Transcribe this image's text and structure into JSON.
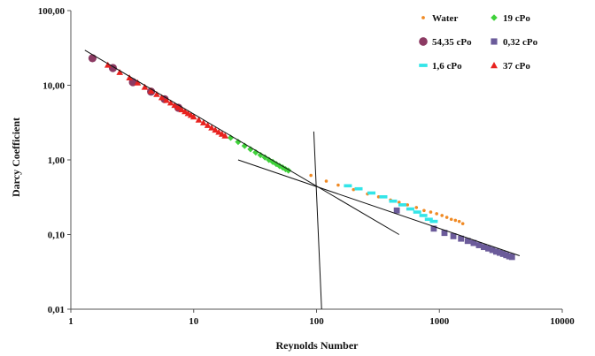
{
  "chart_data": {
    "type": "scatter",
    "title": "",
    "xlabel": "Reynolds Number",
    "ylabel": "Darcy Coefficient",
    "x_scale": "log",
    "y_scale": "log",
    "xlim": [
      1,
      10000
    ],
    "ylim": [
      0.01,
      100
    ],
    "x_ticks": [
      {
        "value": 1,
        "label": "1"
      },
      {
        "value": 10,
        "label": "10"
      },
      {
        "value": 100,
        "label": "100"
      },
      {
        "value": 1000,
        "label": "1000"
      },
      {
        "value": 10000,
        "label": "10000"
      }
    ],
    "y_ticks": [
      {
        "value": 0.01,
        "label": "0,01"
      },
      {
        "value": 0.1,
        "label": "0,10"
      },
      {
        "value": 1,
        "label": "1,00"
      },
      {
        "value": 10,
        "label": "10,00"
      },
      {
        "value": 100,
        "label": "100,00"
      }
    ],
    "grid": false,
    "legend_position": "top-right",
    "series": [
      {
        "name": "Water",
        "marker": "dot",
        "color": "#f08a24",
        "x": [
          90,
          120,
          150,
          200,
          260,
          320,
          400,
          470,
          550,
          650,
          750,
          850,
          950,
          1050,
          1150,
          1250,
          1350,
          1450,
          1550
        ],
        "y": [
          0.62,
          0.52,
          0.46,
          0.4,
          0.35,
          0.32,
          0.29,
          0.27,
          0.25,
          0.23,
          0.21,
          0.2,
          0.19,
          0.18,
          0.17,
          0.16,
          0.155,
          0.15,
          0.14
        ]
      },
      {
        "name": "19 cPo",
        "marker": "diamond",
        "color": "#3fd13a",
        "x": [
          20,
          23,
          26,
          29,
          32,
          35,
          38,
          41,
          44,
          47,
          50,
          53,
          56,
          59
        ],
        "y": [
          1.98,
          1.74,
          1.54,
          1.39,
          1.26,
          1.16,
          1.08,
          1.0,
          0.94,
          0.88,
          0.83,
          0.79,
          0.75,
          0.72
        ]
      },
      {
        "name": "54,35 cPo",
        "marker": "circle",
        "color": "#8c3a63",
        "x": [
          1.5,
          2.2,
          3.2,
          4.5,
          5.8,
          7.5
        ],
        "y": [
          23.0,
          17.0,
          11.0,
          8.2,
          6.5,
          5.0
        ]
      },
      {
        "name": "0,32 cPo",
        "marker": "square",
        "color": "#6b5b9a",
        "x": [
          450,
          900,
          1100,
          1300,
          1500,
          1700,
          1900,
          2100,
          2300,
          2500,
          2700,
          2900,
          3100,
          3300,
          3500,
          3700,
          3900
        ],
        "y": [
          0.21,
          0.12,
          0.105,
          0.095,
          0.088,
          0.082,
          0.077,
          0.072,
          0.068,
          0.065,
          0.062,
          0.059,
          0.057,
          0.055,
          0.053,
          0.051,
          0.05
        ]
      },
      {
        "name": "1,6 cPo",
        "marker": "dash",
        "color": "#33e5e8",
        "x": [
          180,
          220,
          280,
          350,
          420,
          500,
          580,
          660,
          740,
          820,
          900
        ],
        "y": [
          0.45,
          0.41,
          0.36,
          0.32,
          0.28,
          0.25,
          0.22,
          0.2,
          0.18,
          0.16,
          0.15
        ]
      },
      {
        "name": "37 cPo",
        "marker": "triangle",
        "color": "#e8221f",
        "x": [
          2.0,
          2.5,
          3.0,
          3.5,
          4.0,
          4.5,
          5.0,
          5.5,
          6.0,
          6.5,
          7.0,
          7.5,
          8.0,
          8.5,
          9.0,
          9.5,
          10,
          11,
          12,
          13,
          14,
          15,
          16,
          17,
          18
        ],
        "y": [
          18.7,
          14.9,
          12.6,
          10.8,
          9.45,
          8.4,
          7.56,
          6.87,
          6.3,
          5.82,
          5.4,
          5.04,
          4.72,
          4.45,
          4.2,
          3.98,
          3.78,
          3.44,
          3.15,
          2.91,
          2.7,
          2.52,
          2.36,
          2.22,
          2.1
        ]
      }
    ],
    "lines": [
      {
        "x": [
          1.3,
          470
        ],
        "y": [
          29.5,
          0.1
        ]
      },
      {
        "x": [
          23,
          4500
        ],
        "y": [
          1.0,
          0.052
        ]
      },
      {
        "x": [
          95,
          110
        ],
        "y": [
          2.4,
          0.01
        ]
      }
    ]
  }
}
